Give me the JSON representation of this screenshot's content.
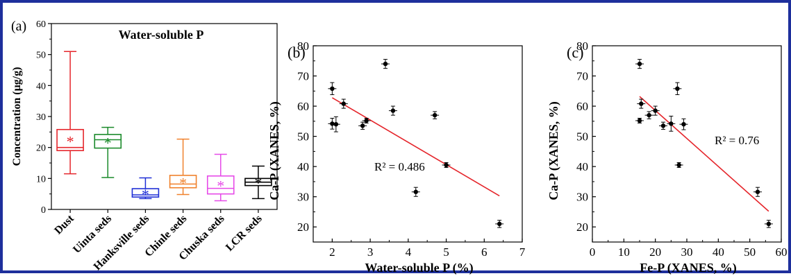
{
  "colors": {
    "frame": "#1e2f9c",
    "fit_line": "#e5252b",
    "points": "#000000"
  },
  "chart_data": [
    {
      "panel_label": "(a)",
      "type": "box",
      "title": "Water-soluble P",
      "ylabel": "Concentration (μg/g)",
      "xlabel": "",
      "ylim": [
        0,
        60
      ],
      "yticks": [
        "0",
        "10",
        "20",
        "30",
        "40",
        "50",
        "60"
      ],
      "categories": [
        "Dust",
        "Uinta seds",
        "Hanksville seds",
        "Chinle seds",
        "Chuska seds",
        "LCR seds"
      ],
      "colors": [
        "#e5252b",
        "#1a8a2a",
        "#1f2fd6",
        "#f0812c",
        "#e64ae8",
        "#000000"
      ],
      "boxes": [
        {
          "min": 11.5,
          "q1": 19,
          "median": 20,
          "q3": 25.8,
          "max": 51,
          "mean": 22.3
        },
        {
          "min": 10.3,
          "q1": 19.8,
          "median": 22.5,
          "q3": 24.2,
          "max": 26.5,
          "mean": 21.8
        },
        {
          "min": 3.5,
          "q1": 4.0,
          "median": 4.7,
          "q3": 6.7,
          "max": 10.2,
          "mean": 5.2
        },
        {
          "min": 4.8,
          "q1": 7.0,
          "median": 8.2,
          "q3": 11.0,
          "max": 22.7,
          "mean": 8.8
        },
        {
          "min": 2.8,
          "q1": 5.0,
          "median": 6.8,
          "q3": 10.8,
          "max": 17.8,
          "mean": 7.9
        },
        {
          "min": 3.5,
          "q1": 7.7,
          "median": 8.8,
          "q3": 10.0,
          "max": 14.0,
          "mean": 8.9
        }
      ]
    },
    {
      "panel_label": "(b)",
      "type": "scatter",
      "xlabel": "Water-soluble P (%)",
      "ylabel": "Ca-P (XANES, %)",
      "xlim": [
        1.5,
        7
      ],
      "ylim": [
        15,
        80
      ],
      "xticks": [
        "2",
        "3",
        "4",
        "5",
        "6",
        "7"
      ],
      "yticks": [
        "20",
        "30",
        "40",
        "50",
        "60",
        "70",
        "80"
      ],
      "annotation": "R² = 0.486",
      "points": [
        {
          "x": 2.0,
          "y": 65.8,
          "err": 2.0
        },
        {
          "x": 2.0,
          "y": 54.2,
          "err": 1.8
        },
        {
          "x": 2.1,
          "y": 54.0,
          "err": 2.5
        },
        {
          "x": 2.3,
          "y": 60.8,
          "err": 1.5
        },
        {
          "x": 2.8,
          "y": 53.5,
          "err": 1.2
        },
        {
          "x": 2.9,
          "y": 55.2,
          "err": 0.8
        },
        {
          "x": 3.4,
          "y": 74.0,
          "err": 1.5
        },
        {
          "x": 3.6,
          "y": 58.5,
          "err": 1.5
        },
        {
          "x": 4.2,
          "y": 31.6,
          "err": 1.5
        },
        {
          "x": 4.7,
          "y": 57.0,
          "err": 1.2
        },
        {
          "x": 5.0,
          "y": 40.5,
          "err": 0.8
        },
        {
          "x": 6.4,
          "y": 21.0,
          "err": 1.2
        }
      ],
      "fit_line": {
        "x": [
          2.0,
          6.4
        ],
        "y": [
          62.8,
          30.3
        ]
      }
    },
    {
      "panel_label": "(c)",
      "type": "scatter",
      "xlabel": "Fe-P (XANES, %)",
      "ylabel": "Ca-P (XANES, %)",
      "xlim": [
        0,
        60
      ],
      "ylim": [
        15,
        80
      ],
      "xticks": [
        "0",
        "10",
        "20",
        "30",
        "40",
        "50",
        "60"
      ],
      "yticks": [
        "20",
        "30",
        "40",
        "50",
        "60",
        "70",
        "80"
      ],
      "annotation": "R² = 0.76",
      "points": [
        {
          "x": 15.0,
          "y": 74.0,
          "err": 1.5
        },
        {
          "x": 15.0,
          "y": 55.2,
          "err": 0.8
        },
        {
          "x": 15.5,
          "y": 60.8,
          "err": 1.5
        },
        {
          "x": 18.0,
          "y": 57.0,
          "err": 1.2
        },
        {
          "x": 20.0,
          "y": 58.5,
          "err": 1.5
        },
        {
          "x": 22.5,
          "y": 53.5,
          "err": 1.2
        },
        {
          "x": 25.0,
          "y": 54.2,
          "err": 2.5
        },
        {
          "x": 27.0,
          "y": 65.8,
          "err": 2.0
        },
        {
          "x": 27.5,
          "y": 40.5,
          "err": 0.8
        },
        {
          "x": 29.0,
          "y": 54.0,
          "err": 1.8
        },
        {
          "x": 52.5,
          "y": 31.6,
          "err": 1.5
        },
        {
          "x": 56.0,
          "y": 21.0,
          "err": 1.2
        }
      ],
      "fit_line": {
        "x": [
          15.0,
          56.0
        ],
        "y": [
          63.2,
          25.2
        ]
      }
    }
  ]
}
